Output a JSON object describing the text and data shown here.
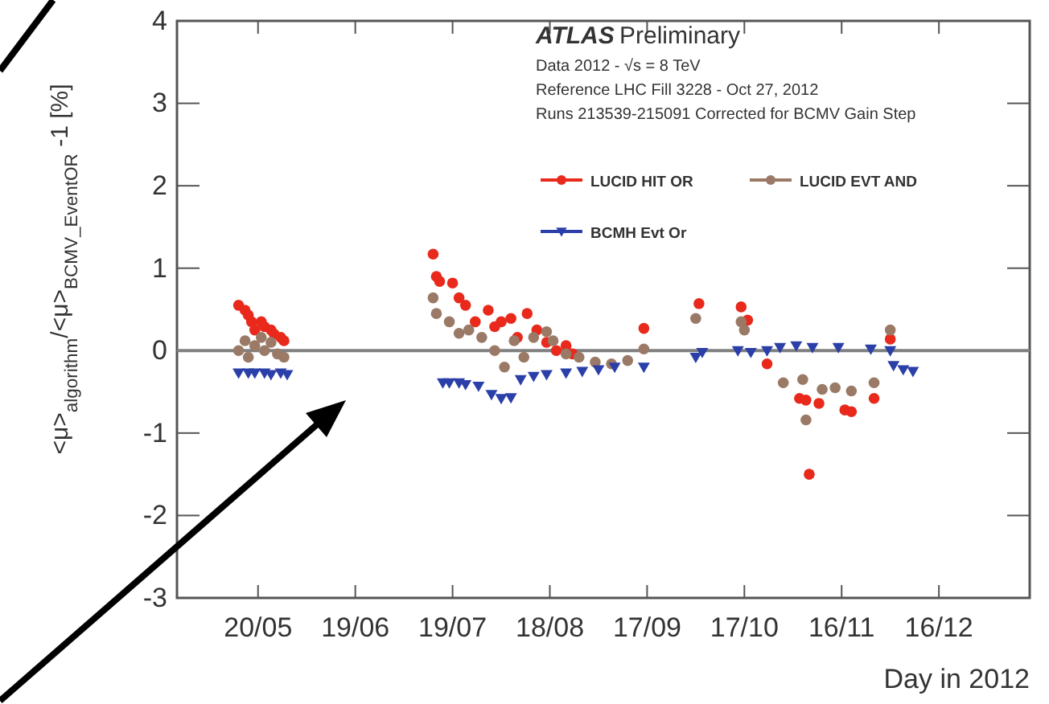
{
  "chart_data": {
    "type": "scatter",
    "xlabel": "Day in 2012",
    "ylabel": "<μ>$_{algorithm}$/<μ>$_{BCMV_EventOR}$ -1 [%]",
    "xlim": [
      "2012-04-25",
      "2013-01-13"
    ],
    "xticks": [
      {
        "value": "2012-05-20",
        "label": "20/05"
      },
      {
        "value": "2012-06-19",
        "label": "19/06"
      },
      {
        "value": "2012-07-19",
        "label": "19/07"
      },
      {
        "value": "2012-08-18",
        "label": "18/08"
      },
      {
        "value": "2012-09-17",
        "label": "17/09"
      },
      {
        "value": "2012-10-17",
        "label": "17/10"
      },
      {
        "value": "2012-11-16",
        "label": "16/11"
      },
      {
        "value": "2012-12-16",
        "label": "16/12"
      }
    ],
    "ylim": [
      -3,
      4
    ],
    "yticks": [
      -3,
      -2,
      -1,
      0,
      1,
      2,
      3,
      4
    ],
    "grid": false,
    "legend": "top right",
    "ref_lines": [
      {
        "axis": "y",
        "value": 0,
        "color": "#808080"
      }
    ],
    "annotations": [
      "ATLAS",
      "Preliminary",
      "Data 2012 - √s = 8 TeV",
      "Reference LHC Fill 3228 - Oct 27, 2012",
      "Runs 213539-215091 Corrected for BCMV Gain Step"
    ],
    "series": [
      {
        "name": "LUCID HIT OR",
        "color": "#e8291c",
        "marker": "circle",
        "x": [
          "2012-05-14",
          "2012-05-16",
          "2012-05-17",
          "2012-05-18",
          "2012-05-19",
          "2012-05-21",
          "2012-05-22",
          "2012-05-24",
          "2012-05-25",
          "2012-05-27",
          "2012-05-28",
          "2012-07-13",
          "2012-07-14",
          "2012-07-15",
          "2012-07-19",
          "2012-07-21",
          "2012-07-23",
          "2012-07-26",
          "2012-07-30",
          "2012-08-01",
          "2012-08-03",
          "2012-08-06",
          "2012-08-08",
          "2012-08-11",
          "2012-08-14",
          "2012-08-17",
          "2012-08-20",
          "2012-08-23",
          "2012-08-25",
          "2012-09-16",
          "2012-10-03",
          "2012-10-16",
          "2012-10-18",
          "2012-10-24",
          "2012-11-03",
          "2012-11-05",
          "2012-11-06",
          "2012-11-09",
          "2012-11-17",
          "2012-11-19",
          "2012-11-26",
          "2012-12-01"
        ],
        "values": [
          0.55,
          0.49,
          0.43,
          0.35,
          0.25,
          0.35,
          0.29,
          0.25,
          0.2,
          0.16,
          0.12,
          1.17,
          0.9,
          0.84,
          0.82,
          0.64,
          0.55,
          0.35,
          0.49,
          0.29,
          0.35,
          0.39,
          0.16,
          0.45,
          0.25,
          0.1,
          0.0,
          0.06,
          -0.04,
          0.27,
          0.57,
          0.53,
          0.37,
          -0.16,
          -0.58,
          -0.6,
          -1.5,
          -0.64,
          -0.72,
          -0.74,
          -0.58,
          0.14
        ]
      },
      {
        "name": "LUCID EVT AND",
        "color": "#9a7a66",
        "marker": "circle",
        "x": [
          "2012-05-14",
          "2012-05-16",
          "2012-05-17",
          "2012-05-19",
          "2012-05-21",
          "2012-05-22",
          "2012-05-24",
          "2012-05-26",
          "2012-05-28",
          "2012-07-13",
          "2012-07-14",
          "2012-07-18",
          "2012-07-21",
          "2012-07-24",
          "2012-07-28",
          "2012-08-01",
          "2012-08-04",
          "2012-08-07",
          "2012-08-10",
          "2012-08-13",
          "2012-08-17",
          "2012-08-19",
          "2012-08-23",
          "2012-08-27",
          "2012-09-01",
          "2012-09-06",
          "2012-09-11",
          "2012-09-16",
          "2012-10-02",
          "2012-10-16",
          "2012-10-17",
          "2012-10-29",
          "2012-11-04",
          "2012-11-05",
          "2012-11-10",
          "2012-11-14",
          "2012-11-19",
          "2012-11-26",
          "2012-12-01"
        ],
        "values": [
          0.0,
          0.12,
          -0.08,
          0.06,
          0.16,
          0.0,
          0.1,
          -0.04,
          -0.08,
          0.64,
          0.45,
          0.35,
          0.21,
          0.25,
          0.16,
          0.0,
          -0.2,
          0.12,
          -0.08,
          0.16,
          0.23,
          0.12,
          -0.04,
          -0.08,
          -0.14,
          -0.16,
          -0.12,
          0.02,
          0.39,
          0.35,
          0.25,
          -0.39,
          -0.35,
          -0.84,
          -0.47,
          -0.45,
          -0.49,
          -0.39,
          0.25
        ]
      },
      {
        "name": "BCMH Evt Or",
        "color": "#2b3fa8",
        "marker": "triangle",
        "x": [
          "2012-05-14",
          "2012-05-17",
          "2012-05-19",
          "2012-05-22",
          "2012-05-24",
          "2012-05-27",
          "2012-05-29",
          "2012-07-16",
          "2012-07-18",
          "2012-07-21",
          "2012-07-23",
          "2012-07-27",
          "2012-07-31",
          "2012-08-03",
          "2012-08-06",
          "2012-08-09",
          "2012-08-13",
          "2012-08-17",
          "2012-08-23",
          "2012-08-28",
          "2012-09-02",
          "2012-09-07",
          "2012-09-16",
          "2012-10-02",
          "2012-10-04",
          "2012-10-15",
          "2012-10-19",
          "2012-10-24",
          "2012-10-28",
          "2012-11-02",
          "2012-11-07",
          "2012-11-15",
          "2012-11-25",
          "2012-12-01",
          "2012-12-02",
          "2012-12-05",
          "2012-12-08"
        ],
        "values": [
          -0.27,
          -0.27,
          -0.27,
          -0.27,
          -0.29,
          -0.27,
          -0.29,
          -0.39,
          -0.39,
          -0.39,
          -0.41,
          -0.43,
          -0.53,
          -0.58,
          -0.57,
          -0.35,
          -0.31,
          -0.29,
          -0.27,
          -0.25,
          -0.23,
          -0.2,
          -0.2,
          -0.08,
          -0.02,
          0.0,
          -0.02,
          0.0,
          0.04,
          0.06,
          0.04,
          0.04,
          0.02,
          0.0,
          -0.18,
          -0.23,
          -0.25
        ]
      }
    ]
  }
}
